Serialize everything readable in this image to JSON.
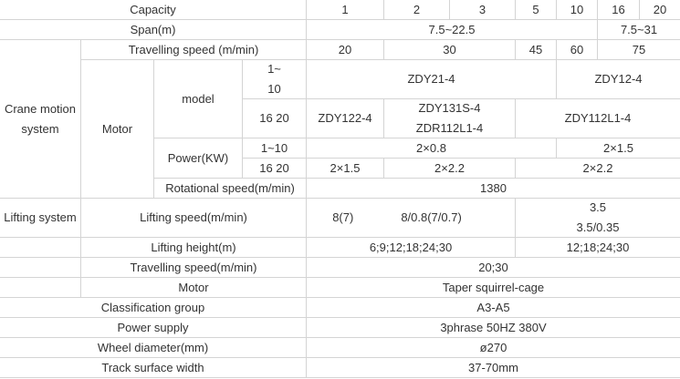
{
  "capacity": {
    "label": "Capacity",
    "values": [
      "1",
      "2",
      "3",
      "5",
      "10",
      "16",
      "20"
    ]
  },
  "span": {
    "label": "Span(m)",
    "values": [
      "7.5~22.5",
      "7.5~31"
    ]
  },
  "crane_motion": {
    "label_line1": "Crane motion",
    "label_line2": "system",
    "travelling_speed": {
      "label": "Travelling speed (m/min)",
      "values": [
        "20",
        "30",
        "45",
        "60",
        "75"
      ]
    },
    "motor": {
      "label": "Motor",
      "model": {
        "label": "model",
        "row1": {
          "cap_line1": "1~",
          "cap_line2": "10",
          "values": [
            "ZDY21-4",
            "ZDY12-4"
          ]
        },
        "row2": {
          "cap": "16 20",
          "values": [
            "ZDY122-4",
            "ZDY131S-4",
            "ZDR112L1-4",
            "ZDY112L1-4"
          ]
        }
      },
      "power": {
        "label": "Power(KW)",
        "row1": {
          "cap": "1~10",
          "values": [
            "2×0.8",
            "2×1.5"
          ]
        },
        "row2": {
          "cap": "16 20",
          "values": [
            "2×1.5",
            "2×2.2",
            "2×2.2"
          ]
        }
      },
      "rotational_speed": {
        "label": "Rotational speed(m/min)",
        "value": "1380"
      }
    }
  },
  "lifting": {
    "label": "Lifting system",
    "speed": {
      "label": "Lifting speed(m/min)",
      "values": [
        "8(7)",
        "8/0.8(7/0.7)",
        "3.5",
        "3.5/0.35"
      ]
    },
    "height": {
      "label": "Lifting height(m)",
      "values": [
        "6;9;12;18;24;30",
        "12;18;24;30"
      ]
    },
    "travelling_speed": {
      "label": "Travelling speed(m/min)",
      "value": "20;30"
    },
    "motor": {
      "label": "Motor",
      "value": "Taper squirrel-cage"
    }
  },
  "classification": {
    "label": "Classification group",
    "value": "A3-A5"
  },
  "power_supply": {
    "label": "Power supply",
    "value": "3phrase 50HZ 380V"
  },
  "wheel": {
    "label": "Wheel diameter(mm)",
    "value": "ø270"
  },
  "track": {
    "label": "Track surface width",
    "value": "37-70mm"
  }
}
